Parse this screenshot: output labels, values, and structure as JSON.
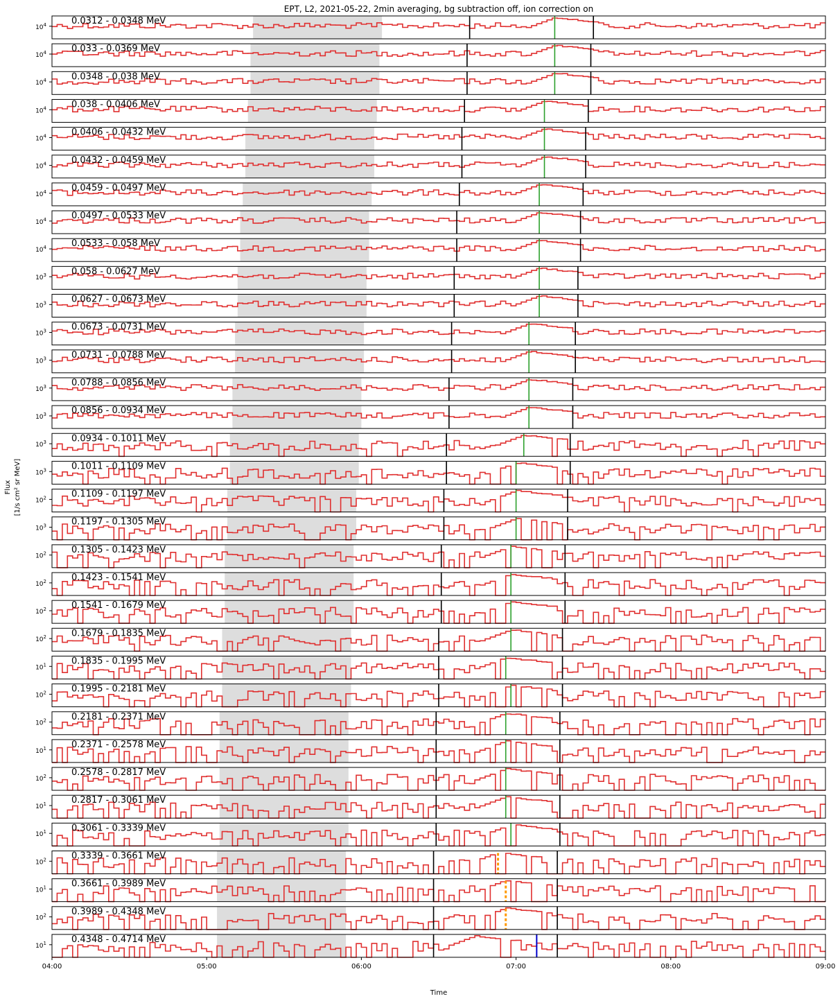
{
  "title": "EPT, L2, 2021-05-22, 2min averaging, bg subtraction off, ion correction on",
  "y_label_line1": "Flux",
  "y_label_line2": "[1/s cm² sr MeV]",
  "x_label": "Time",
  "colors": {
    "trace": "#e03030",
    "shade": "#dddddd",
    "boundary_lines": "#000000",
    "peak_line": "#2ca02c",
    "orange_marker": "#ff9900",
    "blue_marker": "#0000cc"
  },
  "chart_data": {
    "type": "line",
    "grid": false,
    "legend": "none",
    "x_axis": {
      "range": [
        "04:00",
        "09:00"
      ],
      "ticks": [
        "04:00",
        "05:00",
        "06:00",
        "07:00",
        "08:00",
        "09:00"
      ]
    },
    "y_scale": "log",
    "panels": [
      {
        "label": "0.0312 - 0.0348 MeV",
        "ytick": "10^4",
        "shade": [
          "05:18",
          "06:08"
        ],
        "lines": [
          "06:42",
          "07:30"
        ],
        "peak": "07:15",
        "level": 0.55
      },
      {
        "label": "0.033 - 0.0369 MeV",
        "ytick": "10^4",
        "shade": [
          "05:17",
          "06:07"
        ],
        "lines": [
          "06:41",
          "07:29"
        ],
        "peak": "07:15",
        "level": 0.55
      },
      {
        "label": "0.0348 - 0.038 MeV",
        "ytick": "10^4",
        "shade": [
          "05:17",
          "06:07"
        ],
        "lines": [
          "06:41",
          "07:29"
        ],
        "peak": "07:15",
        "level": 0.55
      },
      {
        "label": "0.038 - 0.0406 MeV",
        "ytick": "10^4",
        "shade": [
          "05:16",
          "06:06"
        ],
        "lines": [
          "06:40",
          "07:28"
        ],
        "peak": "07:11",
        "level": 0.55
      },
      {
        "label": "0.0406 - 0.0432 MeV",
        "ytick": "10^4",
        "shade": [
          "05:15",
          "06:05"
        ],
        "lines": [
          "06:39",
          "07:27"
        ],
        "peak": "07:11",
        "level": 0.55
      },
      {
        "label": "0.0432 - 0.0459 MeV",
        "ytick": "10^4",
        "shade": [
          "05:15",
          "06:05"
        ],
        "lines": [
          "06:39",
          "07:27"
        ],
        "peak": "07:11",
        "level": 0.55
      },
      {
        "label": "0.0459 - 0.0497 MeV",
        "ytick": "10^4",
        "shade": [
          "05:14",
          "06:04"
        ],
        "lines": [
          "06:38",
          "07:26"
        ],
        "peak": "07:09",
        "level": 0.55
      },
      {
        "label": "0.0497 - 0.0533 MeV",
        "ytick": "10^4",
        "shade": [
          "05:13",
          "06:03"
        ],
        "lines": [
          "06:37",
          "07:25"
        ],
        "peak": "07:09",
        "level": 0.55
      },
      {
        "label": "0.0533 - 0.058 MeV",
        "ytick": "10^4",
        "shade": [
          "05:13",
          "06:03"
        ],
        "lines": [
          "06:37",
          "07:25"
        ],
        "peak": "07:09",
        "level": 0.55
      },
      {
        "label": "0.058 - 0.0627 MeV",
        "ytick": "10^3",
        "shade": [
          "05:12",
          "06:02"
        ],
        "lines": [
          "06:36",
          "07:24"
        ],
        "peak": "07:09",
        "level": 0.55
      },
      {
        "label": "0.0627 - 0.0673 MeV",
        "ytick": "10^3",
        "shade": [
          "05:12",
          "06:02"
        ],
        "lines": [
          "06:36",
          "07:24"
        ],
        "peak": "07:09",
        "level": 0.55
      },
      {
        "label": "0.0673 - 0.0731 MeV",
        "ytick": "10^3",
        "shade": [
          "05:11",
          "06:01"
        ],
        "lines": [
          "06:35",
          "07:23"
        ],
        "peak": "07:05",
        "level": 0.6
      },
      {
        "label": "0.0731 - 0.0788 MeV",
        "ytick": "10^3",
        "shade": [
          "05:11",
          "06:01"
        ],
        "lines": [
          "06:35",
          "07:23"
        ],
        "peak": "07:05",
        "level": 0.6
      },
      {
        "label": "0.0788 - 0.0856 MeV",
        "ytick": "10^3",
        "shade": [
          "05:10",
          "06:00"
        ],
        "lines": [
          "06:34",
          "07:22"
        ],
        "peak": "07:05",
        "level": 0.6
      },
      {
        "label": "0.0856 - 0.0934 MeV",
        "ytick": "10^3",
        "shade": [
          "05:10",
          "06:00"
        ],
        "lines": [
          "06:34",
          "07:22"
        ],
        "peak": "07:05",
        "level": 0.6
      },
      {
        "label": "0.0934 - 0.1011 MeV",
        "ytick": "10^3",
        "shade": [
          "05:09",
          "05:59"
        ],
        "lines": [
          "06:33",
          "07:21"
        ],
        "peak": "07:03",
        "level": 0.65
      },
      {
        "label": "0.1011 - 0.1109 MeV",
        "ytick": "10^3",
        "shade": [
          "05:09",
          "05:59"
        ],
        "lines": [
          "06:33",
          "07:21"
        ],
        "peak": "07:00",
        "level": 0.65
      },
      {
        "label": "0.1109 - 0.1197 MeV",
        "ytick": "10^2",
        "shade": [
          "05:08",
          "05:58"
        ],
        "lines": [
          "06:32",
          "07:20"
        ],
        "peak": "07:00",
        "level": 0.65
      },
      {
        "label": "0.1197 - 0.1305 MeV",
        "ytick": "10^3",
        "shade": [
          "05:08",
          "05:58"
        ],
        "lines": [
          "06:32",
          "07:20"
        ],
        "peak": "07:00",
        "level": 0.7
      },
      {
        "label": "0.1305 - 0.1423 MeV",
        "ytick": "10^2",
        "shade": [
          "05:07",
          "05:57"
        ],
        "lines": [
          "06:31",
          "07:19"
        ],
        "peak": "06:58",
        "level": 0.7
      },
      {
        "label": "0.1423 - 0.1541 MeV",
        "ytick": "10^2",
        "shade": [
          "05:07",
          "05:57"
        ],
        "lines": [
          "06:31",
          "07:19"
        ],
        "peak": "06:58",
        "level": 0.7
      },
      {
        "label": "0.1541 - 0.1679 MeV",
        "ytick": "10^2",
        "shade": [
          "05:07",
          "05:57"
        ],
        "lines": [
          "06:31",
          "07:19"
        ],
        "peak": "06:58",
        "level": 0.72
      },
      {
        "label": "0.1679 - 0.1835 MeV",
        "ytick": "10^2",
        "shade": [
          "05:06",
          "05:56"
        ],
        "lines": [
          "06:30",
          "07:18"
        ],
        "peak": "06:58",
        "level": 0.72
      },
      {
        "label": "0.1835 - 0.1995 MeV",
        "ytick": "10^1",
        "shade": [
          "05:06",
          "05:56"
        ],
        "lines": [
          "06:30",
          "07:18"
        ],
        "peak": "06:56",
        "level": 0.75
      },
      {
        "label": "0.1995 - 0.2181 MeV",
        "ytick": "10^2",
        "shade": [
          "05:06",
          "05:56"
        ],
        "lines": [
          "06:30",
          "07:18"
        ],
        "peak": "06:58",
        "level": 0.75
      },
      {
        "label": "0.2181 - 0.2371 MeV",
        "ytick": "10^2",
        "shade": [
          "05:05",
          "05:55"
        ],
        "lines": [
          "06:29",
          "07:17"
        ],
        "peak": "06:56",
        "level": 0.78
      },
      {
        "label": "0.2371 - 0.2578 MeV",
        "ytick": "10^1",
        "shade": [
          "05:05",
          "05:55"
        ],
        "lines": [
          "06:29",
          "07:17"
        ],
        "peak": "06:56",
        "level": 0.78
      },
      {
        "label": "0.2578 - 0.2817 MeV",
        "ytick": "10^2",
        "shade": [
          "05:05",
          "05:55"
        ],
        "lines": [
          "06:29",
          "07:17"
        ],
        "peak": "06:56",
        "level": 0.8
      },
      {
        "label": "0.2817 - 0.3061 MeV",
        "ytick": "10^1",
        "shade": [
          "05:05",
          "05:55"
        ],
        "lines": [
          "06:29",
          "07:17"
        ],
        "peak": "06:56",
        "level": 0.8
      },
      {
        "label": "0.3061 - 0.3339 MeV",
        "ytick": "10^1",
        "shade": [
          "05:05",
          "05:55"
        ],
        "lines": [
          "06:29",
          "07:17"
        ],
        "peak": "06:58",
        "level": 0.8
      },
      {
        "label": "0.3339 - 0.3661 MeV",
        "ytick": "10^2",
        "shade": [
          "05:04",
          "05:54"
        ],
        "lines": [
          "06:28",
          "07:16"
        ],
        "orange": "06:53",
        "level": 0.82
      },
      {
        "label": "0.3661 - 0.3989 MeV",
        "ytick": "10^1",
        "shade": [
          "05:04",
          "05:54"
        ],
        "lines": [
          "06:28",
          "07:16"
        ],
        "orange": "06:56",
        "level": 0.82
      },
      {
        "label": "0.3989 - 0.4348 MeV",
        "ytick": "10^2",
        "shade": [
          "05:04",
          "05:54"
        ],
        "lines": [
          "06:28",
          "07:16"
        ],
        "orange": "06:56",
        "level": 0.85
      },
      {
        "label": "0.4348 - 0.4714 MeV",
        "ytick": "10^1",
        "shade": [
          "05:04",
          "05:54"
        ],
        "lines": [
          "06:28",
          "07:16"
        ],
        "blue": "07:08",
        "level": 0.85
      }
    ]
  }
}
